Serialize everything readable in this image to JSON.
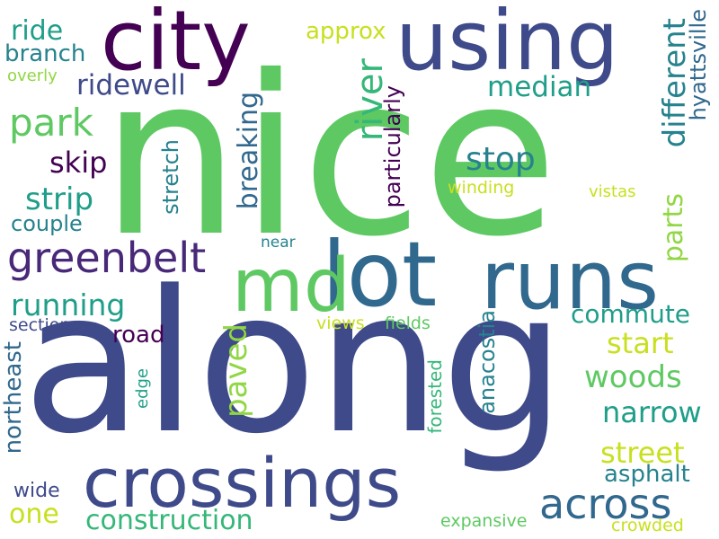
{
  "words": {
    "nice": "nice",
    "along": "along",
    "city": "city",
    "using": "using",
    "lot": "lot",
    "runs": "runs",
    "md": "md",
    "crossings": "crossings",
    "greenbelt": "greenbelt",
    "park": "park",
    "ridewell": "ridewell",
    "ride": "ride",
    "branch": "branch",
    "overly": "overly",
    "approx": "approx",
    "river": "river",
    "particularly": "particularly",
    "median": "median",
    "stop": "stop",
    "different": "different",
    "hyattsville": "hyattsville",
    "parts": "parts",
    "breaking": "breaking",
    "stretch": "stretch",
    "skip": "skip",
    "strip": "strip",
    "couple": "couple",
    "winding": "winding",
    "vistas": "vistas",
    "near": "near",
    "running": "running",
    "section": "section",
    "road": "road",
    "paved": "paved",
    "views": "views",
    "fields": "fields",
    "commute": "commute",
    "start": "start",
    "anacostia": "anacostia",
    "woods": "woods",
    "narrow": "narrow",
    "street": "street",
    "asphalt": "asphalt",
    "across": "across",
    "northeast": "northeast",
    "edge": "edge",
    "forested": "forested",
    "wide": "wide",
    "one": "one",
    "construction": "construction",
    "expansive": "expansive",
    "crowded": "crowded"
  },
  "colors": {
    "dark_purple": "#440154",
    "indigo": "#482878",
    "navy_blue": "#3e4a89",
    "steel_blue": "#31688e",
    "teal": "#26828e",
    "sea_green": "#1f9e89",
    "green": "#35b779",
    "light_green": "#5ec962",
    "lime": "#90d743",
    "yellow": "#c8e020"
  }
}
